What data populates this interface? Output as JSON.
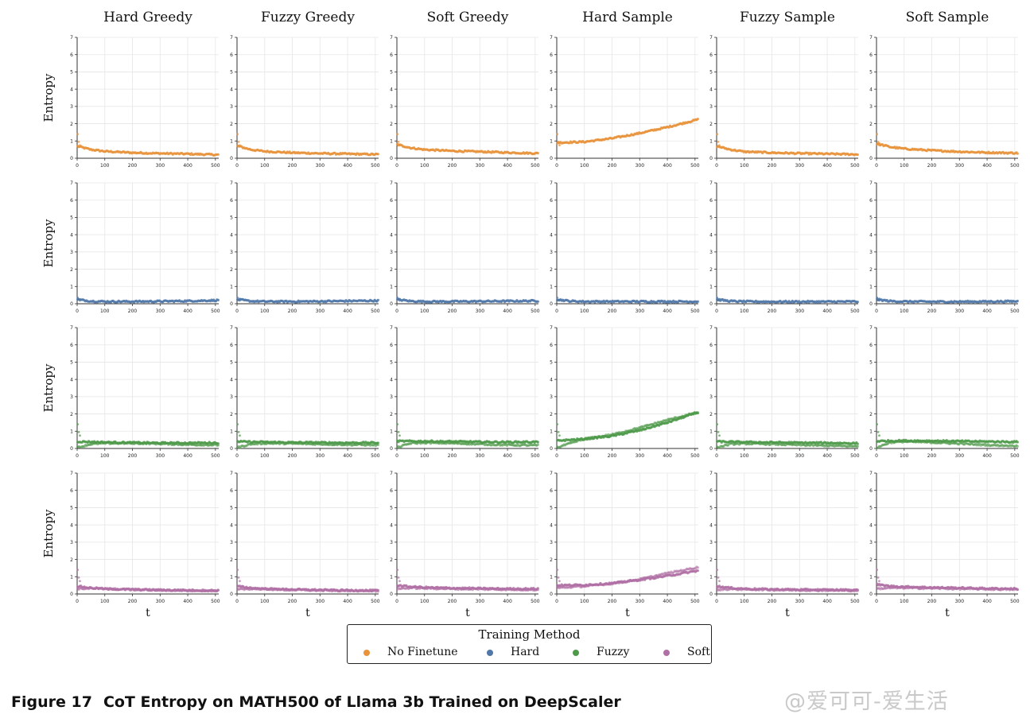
{
  "chart_data": {
    "type": "scatter",
    "columns": [
      "Hard Greedy",
      "Fuzzy Greedy",
      "Soft Greedy",
      "Hard Sample",
      "Fuzzy Sample",
      "Soft Sample"
    ],
    "row_ylabel": "Entropy",
    "xlabel": "t",
    "xlim": [
      0,
      512
    ],
    "ylim": [
      0,
      7
    ],
    "xticks": [
      0,
      100,
      200,
      300,
      400,
      500
    ],
    "yticks": [
      0,
      1,
      2,
      3,
      4,
      5,
      6,
      7
    ],
    "grid": true,
    "legend": {
      "title": "Training Method",
      "placement": "bottom-center",
      "entries": [
        {
          "name": "No Finetune",
          "color": "#e8923a"
        },
        {
          "name": "Hard",
          "color": "#4f77a8"
        },
        {
          "name": "Fuzzy",
          "color": "#4e9a4a"
        },
        {
          "name": "Soft",
          "color": "#b070a5"
        }
      ]
    },
    "rows": [
      {
        "method": "No Finetune",
        "color": "#e8923a",
        "panels": [
          {
            "series": [
              {
                "x": [
                  0,
                  50,
                  100,
                  200,
                  300,
                  400,
                  512
                ],
                "y": [
                  0.7,
                  0.5,
                  0.4,
                  0.32,
                  0.28,
                  0.25,
                  0.2
                ]
              }
            ]
          },
          {
            "series": [
              {
                "x": [
                  0,
                  50,
                  100,
                  200,
                  300,
                  400,
                  512
                ],
                "y": [
                  0.72,
                  0.5,
                  0.4,
                  0.32,
                  0.28,
                  0.25,
                  0.22
                ]
              }
            ]
          },
          {
            "series": [
              {
                "x": [
                  0,
                  50,
                  100,
                  200,
                  300,
                  400,
                  512
                ],
                "y": [
                  0.8,
                  0.6,
                  0.5,
                  0.42,
                  0.38,
                  0.33,
                  0.28
                ]
              }
            ]
          },
          {
            "series": [
              {
                "x": [
                  0,
                  100,
                  200,
                  300,
                  400,
                  512
                ],
                "y": [
                  0.9,
                  0.95,
                  1.15,
                  1.45,
                  1.8,
                  2.25
                ]
              }
            ]
          },
          {
            "series": [
              {
                "x": [
                  0,
                  50,
                  100,
                  200,
                  300,
                  400,
                  512
                ],
                "y": [
                  0.7,
                  0.5,
                  0.38,
                  0.32,
                  0.28,
                  0.25,
                  0.22
                ]
              }
            ]
          },
          {
            "series": [
              {
                "x": [
                  0,
                  50,
                  100,
                  200,
                  300,
                  400,
                  512
                ],
                "y": [
                  0.85,
                  0.65,
                  0.55,
                  0.45,
                  0.38,
                  0.33,
                  0.3
                ]
              }
            ]
          }
        ]
      },
      {
        "method": "Hard",
        "color": "#4f77a8",
        "panels": [
          {
            "series": [
              {
                "x": [
                  0,
                  50,
                  100,
                  200,
                  300,
                  400,
                  512
                ],
                "y": [
                  0.25,
                  0.15,
                  0.13,
                  0.13,
                  0.14,
                  0.16,
                  0.2
                ]
              }
            ]
          },
          {
            "series": [
              {
                "x": [
                  0,
                  50,
                  100,
                  200,
                  300,
                  400,
                  512
                ],
                "y": [
                  0.25,
                  0.15,
                  0.13,
                  0.13,
                  0.14,
                  0.16,
                  0.18
                ]
              }
            ]
          },
          {
            "series": [
              {
                "x": [
                  0,
                  50,
                  100,
                  200,
                  300,
                  400,
                  512
                ],
                "y": [
                  0.25,
                  0.15,
                  0.13,
                  0.13,
                  0.14,
                  0.15,
                  0.17
                ]
              }
            ]
          },
          {
            "series": [
              {
                "x": [
                  0,
                  50,
                  100,
                  200,
                  300,
                  400,
                  512
                ],
                "y": [
                  0.25,
                  0.15,
                  0.13,
                  0.13,
                  0.13,
                  0.13,
                  0.13
                ]
              }
            ]
          },
          {
            "series": [
              {
                "x": [
                  0,
                  50,
                  100,
                  200,
                  300,
                  400,
                  512
                ],
                "y": [
                  0.25,
                  0.15,
                  0.13,
                  0.12,
                  0.12,
                  0.12,
                  0.13
                ]
              }
            ]
          },
          {
            "series": [
              {
                "x": [
                  0,
                  50,
                  100,
                  200,
                  300,
                  400,
                  512
                ],
                "y": [
                  0.25,
                  0.15,
                  0.13,
                  0.12,
                  0.12,
                  0.13,
                  0.14
                ]
              }
            ]
          }
        ]
      },
      {
        "method": "Fuzzy",
        "color": "#4e9a4a",
        "panels": [
          {
            "series": [
              {
                "x": [
                  0,
                  50,
                  100,
                  200,
                  300,
                  400,
                  512
                ],
                "y": [
                  0.4,
                  0.38,
                  0.36,
                  0.34,
                  0.32,
                  0.32,
                  0.33
                ]
              },
              {
                "x": [
                  0,
                  50,
                  100,
                  200,
                  300,
                  400,
                  512
                ],
                "y": [
                  0.05,
                  0.25,
                  0.3,
                  0.3,
                  0.27,
                  0.22,
                  0.2
                ]
              }
            ]
          },
          {
            "series": [
              {
                "x": [
                  0,
                  50,
                  100,
                  200,
                  300,
                  400,
                  512
                ],
                "y": [
                  0.4,
                  0.38,
                  0.37,
                  0.35,
                  0.34,
                  0.33,
                  0.33
                ]
              },
              {
                "x": [
                  0,
                  50,
                  100,
                  200,
                  300,
                  400,
                  512
                ],
                "y": [
                  0.05,
                  0.25,
                  0.3,
                  0.28,
                  0.25,
                  0.22,
                  0.2
                ]
              }
            ]
          },
          {
            "series": [
              {
                "x": [
                  0,
                  50,
                  100,
                  200,
                  300,
                  400,
                  512
                ],
                "y": [
                  0.42,
                  0.42,
                  0.42,
                  0.4,
                  0.38,
                  0.37,
                  0.38
                ]
              },
              {
                "x": [
                  0,
                  50,
                  100,
                  200,
                  300,
                  400,
                  512
                ],
                "y": [
                  0.05,
                  0.3,
                  0.33,
                  0.3,
                  0.25,
                  0.2,
                  0.18
                ]
              }
            ]
          },
          {
            "series": [
              {
                "x": [
                  0,
                  100,
                  200,
                  300,
                  400,
                  512
                ],
                "y": [
                  0.45,
                  0.55,
                  0.72,
                  1.05,
                  1.5,
                  2.1
                ]
              },
              {
                "x": [
                  0,
                  100,
                  200,
                  300,
                  400,
                  512
                ],
                "y": [
                  0.05,
                  0.55,
                  0.8,
                  1.2,
                  1.65,
                  2.1
                ]
              }
            ]
          },
          {
            "series": [
              {
                "x": [
                  0,
                  50,
                  100,
                  200,
                  300,
                  400,
                  512
                ],
                "y": [
                  0.4,
                  0.38,
                  0.37,
                  0.35,
                  0.33,
                  0.32,
                  0.3
                ]
              },
              {
                "x": [
                  0,
                  50,
                  100,
                  200,
                  300,
                  400,
                  512
                ],
                "y": [
                  0.05,
                  0.25,
                  0.28,
                  0.25,
                  0.2,
                  0.16,
                  0.12
                ]
              }
            ]
          },
          {
            "series": [
              {
                "x": [
                  0,
                  50,
                  100,
                  200,
                  300,
                  400,
                  512
                ],
                "y": [
                  0.42,
                  0.44,
                  0.45,
                  0.44,
                  0.42,
                  0.4,
                  0.38
                ]
              },
              {
                "x": [
                  0,
                  50,
                  100,
                  200,
                  300,
                  400,
                  512
                ],
                "y": [
                  0.05,
                  0.35,
                  0.4,
                  0.35,
                  0.28,
                  0.2,
                  0.15
                ]
              }
            ]
          }
        ]
      },
      {
        "method": "Soft",
        "color": "#b070a5",
        "panels": [
          {
            "series": [
              {
                "x": [
                  0,
                  50,
                  100,
                  200,
                  300,
                  400,
                  512
                ],
                "y": [
                  0.45,
                  0.35,
                  0.3,
                  0.26,
                  0.23,
                  0.21,
                  0.2
                ]
              },
              {
                "x": [
                  0,
                  50,
                  100,
                  200,
                  300,
                  400,
                  512
                ],
                "y": [
                  0.3,
                  0.32,
                  0.3,
                  0.25,
                  0.22,
                  0.2,
                  0.18
                ]
              }
            ]
          },
          {
            "series": [
              {
                "x": [
                  0,
                  50,
                  100,
                  200,
                  300,
                  400,
                  512
                ],
                "y": [
                  0.45,
                  0.35,
                  0.3,
                  0.26,
                  0.23,
                  0.21,
                  0.2
                ]
              },
              {
                "x": [
                  0,
                  50,
                  100,
                  200,
                  300,
                  400,
                  512
                ],
                "y": [
                  0.25,
                  0.3,
                  0.28,
                  0.24,
                  0.21,
                  0.19,
                  0.17
                ]
              }
            ]
          },
          {
            "series": [
              {
                "x": [
                  0,
                  50,
                  100,
                  200,
                  300,
                  400,
                  512
                ],
                "y": [
                  0.5,
                  0.42,
                  0.38,
                  0.34,
                  0.32,
                  0.3,
                  0.3
                ]
              },
              {
                "x": [
                  0,
                  50,
                  100,
                  200,
                  300,
                  400,
                  512
                ],
                "y": [
                  0.3,
                  0.35,
                  0.33,
                  0.3,
                  0.28,
                  0.26,
                  0.24
                ]
              }
            ]
          },
          {
            "series": [
              {
                "x": [
                  0,
                  100,
                  200,
                  300,
                  400,
                  512
                ],
                "y": [
                  0.5,
                  0.52,
                  0.62,
                  0.82,
                  1.05,
                  1.35
                ]
              },
              {
                "x": [
                  0,
                  100,
                  200,
                  300,
                  400,
                  512
                ],
                "y": [
                  0.35,
                  0.45,
                  0.6,
                  0.85,
                  1.2,
                  1.55
                ]
              }
            ]
          },
          {
            "series": [
              {
                "x": [
                  0,
                  50,
                  100,
                  200,
                  300,
                  400,
                  512
                ],
                "y": [
                  0.45,
                  0.35,
                  0.3,
                  0.27,
                  0.25,
                  0.24,
                  0.23
                ]
              },
              {
                "x": [
                  0,
                  50,
                  100,
                  200,
                  300,
                  400,
                  512
                ],
                "y": [
                  0.25,
                  0.28,
                  0.27,
                  0.24,
                  0.22,
                  0.21,
                  0.2
                ]
              }
            ]
          },
          {
            "series": [
              {
                "x": [
                  0,
                  50,
                  100,
                  200,
                  300,
                  400,
                  512
                ],
                "y": [
                  0.55,
                  0.45,
                  0.42,
                  0.38,
                  0.35,
                  0.32,
                  0.3
                ]
              },
              {
                "x": [
                  0,
                  50,
                  100,
                  200,
                  300,
                  400,
                  512
                ],
                "y": [
                  0.3,
                  0.35,
                  0.35,
                  0.33,
                  0.3,
                  0.28,
                  0.26
                ]
              }
            ]
          }
        ]
      }
    ]
  },
  "caption": {
    "number": "Figure 17",
    "text": "CoT Entropy on MATH500 of Llama 3b Trained on DeepScaler"
  },
  "watermark": "@爱可可-爱生活"
}
